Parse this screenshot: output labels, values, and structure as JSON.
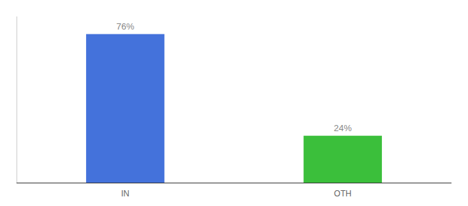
{
  "chart_data": {
    "type": "bar",
    "categories": [
      "IN",
      "OTH"
    ],
    "values": [
      76,
      24
    ],
    "value_labels": [
      "76%",
      "24%"
    ],
    "data_labels": true,
    "colors": [
      "#4472db",
      "#3bbf3b"
    ],
    "ylim": [
      0,
      85
    ],
    "yticks": [],
    "tick_labels": "x",
    "grid": false
  }
}
